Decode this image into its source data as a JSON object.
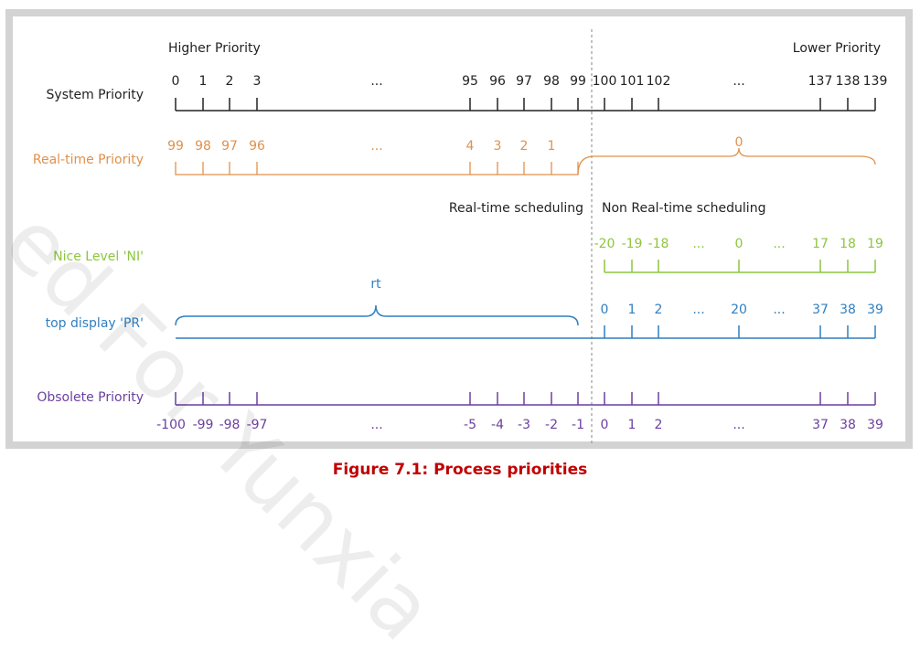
{
  "headers": {
    "higher": "Higher Priority",
    "lower": "Lower Priority"
  },
  "colors": {
    "system": "#222222",
    "realtime": "#e0914b",
    "nice": "#8cc63f",
    "top": "#2f7fc1",
    "obsolete": "#6b3fa0",
    "caption": "#c00000"
  },
  "rows": {
    "system": {
      "label": "System Priority",
      "left_ticks": [
        "0",
        "1",
        "2",
        "3"
      ],
      "mid_left_ticks": [
        "95",
        "96",
        "97",
        "98",
        "99"
      ],
      "right_ticks": [
        "100",
        "101",
        "102"
      ],
      "far_right_ticks": [
        "137",
        "138",
        "139"
      ],
      "ellipsis": "..."
    },
    "realtime": {
      "label": "Real-time Priority",
      "left_ticks": [
        "99",
        "98",
        "97",
        "96"
      ],
      "mid_left_ticks": [
        "4",
        "3",
        "2",
        "1"
      ],
      "brace_label": "0",
      "ellipsis": "..."
    },
    "nice": {
      "label": "Nice Level 'NI'",
      "ticks": [
        "-20",
        "-19",
        "-18",
        "0",
        "17",
        "18",
        "19"
      ],
      "ellipsis": "..."
    },
    "top": {
      "label": "top display 'PR'",
      "brace_label": "rt",
      "ticks": [
        "0",
        "1",
        "2",
        "20",
        "37",
        "38",
        "39"
      ],
      "ellipsis": "..."
    },
    "obsolete": {
      "label": "Obsolete Priority",
      "left_ticks": [
        "-100",
        "-99",
        "-98",
        "-97"
      ],
      "mid_ticks": [
        "-5",
        "-4",
        "-3",
        "-2",
        "-1"
      ],
      "right_ticks": [
        "0",
        "1",
        "2"
      ],
      "far_right_ticks": [
        "37",
        "38",
        "39"
      ],
      "ellipsis": "..."
    }
  },
  "scheduling": {
    "rt": "Real-time scheduling",
    "non_rt": "Non Real-time scheduling"
  },
  "caption": "Figure 7.1: Process priorities",
  "watermark": "ed For Yunxia"
}
